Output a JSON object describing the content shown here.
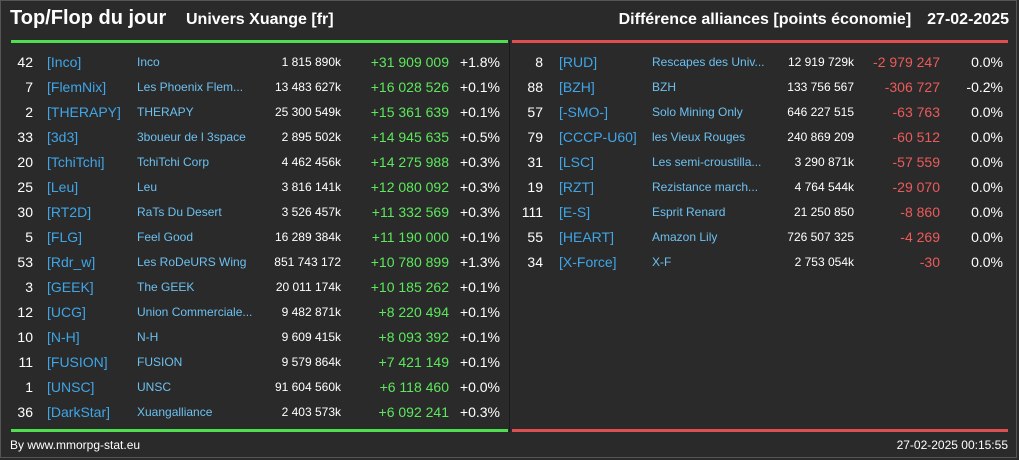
{
  "header": {
    "title": "Top/Flop du jour",
    "universe": "Univers Xuange [fr]",
    "metric": "Différence alliances [points économie]",
    "date": "27-02-2025"
  },
  "colors": {
    "top_accent": "#4fde4f",
    "flop_accent": "#de4f4f",
    "gain": "#5ce85c",
    "loss": "#ec5a5a",
    "tag": "#3fa6e8",
    "name": "#6cc0f0",
    "background": "#2a2a2a"
  },
  "top": [
    {
      "rank": "42",
      "tag": "[Inco]",
      "name": "Inco",
      "points": "1 815 890k",
      "diff": "+31 909 009",
      "pct": "+1.8%"
    },
    {
      "rank": "7",
      "tag": "[FlemNix]",
      "name": "Les Phoenix Flem...",
      "points": "13 483 627k",
      "diff": "+16 028 526",
      "pct": "+0.1%"
    },
    {
      "rank": "2",
      "tag": "[THERAPY]",
      "name": "THERAPY",
      "points": "25 300 549k",
      "diff": "+15 361 639",
      "pct": "+0.1%"
    },
    {
      "rank": "33",
      "tag": "[3d3]",
      "name": "3boueur de l 3space",
      "points": "2 895 502k",
      "diff": "+14 945 635",
      "pct": "+0.5%"
    },
    {
      "rank": "20",
      "tag": "[TchiTchi]",
      "name": "TchiTchi Corp",
      "points": "4 462 456k",
      "diff": "+14 275 988",
      "pct": "+0.3%"
    },
    {
      "rank": "25",
      "tag": "[Leu]",
      "name": "Leu",
      "points": "3 816 141k",
      "diff": "+12 080 092",
      "pct": "+0.3%"
    },
    {
      "rank": "30",
      "tag": "[RT2D]",
      "name": "RaTs Du Desert",
      "points": "3 526 457k",
      "diff": "+11 332 569",
      "pct": "+0.3%"
    },
    {
      "rank": "5",
      "tag": "[FLG]",
      "name": "Feel Good",
      "points": "16 289 384k",
      "diff": "+11 190 000",
      "pct": "+0.1%"
    },
    {
      "rank": "53",
      "tag": "[Rdr_w]",
      "name": "Les RoDeURS Wing",
      "points": "851 743 172",
      "diff": "+10 780 899",
      "pct": "+1.3%"
    },
    {
      "rank": "3",
      "tag": "[GEEK]",
      "name": "The GEEK",
      "points": "20 011 174k",
      "diff": "+10 185 262",
      "pct": "+0.1%"
    },
    {
      "rank": "12",
      "tag": "[UCG]",
      "name": "Union Commerciale...",
      "points": "9 482 871k",
      "diff": "+8 220 494",
      "pct": "+0.1%"
    },
    {
      "rank": "10",
      "tag": "[N-H]",
      "name": "N-H",
      "points": "9 609 415k",
      "diff": "+8 093 392",
      "pct": "+0.1%"
    },
    {
      "rank": "11",
      "tag": "[FUSION]",
      "name": "FUSION",
      "points": "9 579 864k",
      "diff": "+7 421 149",
      "pct": "+0.1%"
    },
    {
      "rank": "1",
      "tag": "[UNSC]",
      "name": "UNSC",
      "points": "91 604 560k",
      "diff": "+6 118 460",
      "pct": "+0.0%"
    },
    {
      "rank": "36",
      "tag": "[DarkStar]",
      "name": "Xuangalliance",
      "points": "2 403 573k",
      "diff": "+6 092 241",
      "pct": "+0.3%"
    }
  ],
  "flop": [
    {
      "rank": "8",
      "tag": "[RUD]",
      "name": "Rescapes des Univ...",
      "points": "12 919 729k",
      "diff": "-2 979 247",
      "pct": "0.0%"
    },
    {
      "rank": "88",
      "tag": "[BZH]",
      "name": "BZH",
      "points": "133 756 567",
      "diff": "-306 727",
      "pct": "-0.2%"
    },
    {
      "rank": "57",
      "tag": "[-SMO-]",
      "name": "Solo Mining Only",
      "points": "646 227 515",
      "diff": "-63 763",
      "pct": "0.0%"
    },
    {
      "rank": "79",
      "tag": "[CCCP-U60]",
      "name": "les Vieux Rouges",
      "points": "240 869 209",
      "diff": "-60 512",
      "pct": "0.0%"
    },
    {
      "rank": "31",
      "tag": "[LSC]",
      "name": "Les semi-croustilla...",
      "points": "3 290 871k",
      "diff": "-57 559",
      "pct": "0.0%"
    },
    {
      "rank": "19",
      "tag": "[RZT]",
      "name": "Rezistance march...",
      "points": "4 764 544k",
      "diff": "-29 070",
      "pct": "0.0%"
    },
    {
      "rank": "111",
      "tag": "[E-S]",
      "name": "Esprit Renard",
      "points": "21 250 850",
      "diff": "-8 860",
      "pct": "0.0%"
    },
    {
      "rank": "55",
      "tag": "[HEART]",
      "name": "Amazon Lily",
      "points": "726 507 325",
      "diff": "-4 269",
      "pct": "0.0%"
    },
    {
      "rank": "34",
      "tag": "[X-Force]",
      "name": "X-F",
      "points": "2 753 054k",
      "diff": "-30",
      "pct": "0.0%"
    }
  ],
  "footer": {
    "credit": "By www.mmorpg-stat.eu",
    "timestamp": "27-02-2025 00:15:55"
  }
}
